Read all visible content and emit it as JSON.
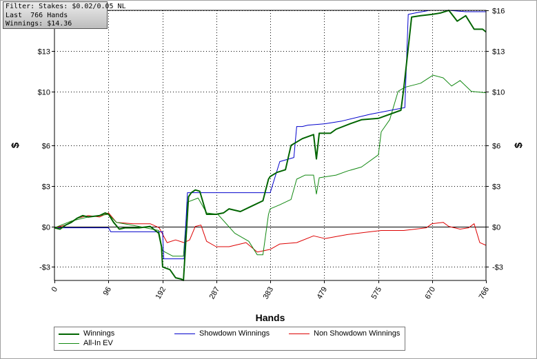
{
  "info_box": {
    "line1": "Filter: Stakes: $0.02/0.05 NL",
    "line2": "Last  766 Hands",
    "line3": "Winnings: $14.36"
  },
  "colors": {
    "winnings": "#006400",
    "showdown": "#0000cc",
    "non_showdown": "#dd0000",
    "all_in_ev": "#118811",
    "zero_line": "#000000",
    "grid": "#000000"
  },
  "chart_data": {
    "type": "line",
    "title": "",
    "xlabel": "Hands",
    "ylabel_left": "$",
    "ylabel_right": "$",
    "xlim": [
      0,
      766
    ],
    "ylim": [
      -4,
      16
    ],
    "x_ticks": [
      0,
      96,
      192,
      287,
      383,
      479,
      575,
      670,
      766
    ],
    "x_tick_labels": [
      "0",
      "96",
      "192",
      "287",
      "383",
      "479",
      "575",
      "670",
      "766"
    ],
    "y_ticks": [
      -3,
      0,
      3,
      6,
      10,
      13,
      16
    ],
    "y_tick_labels": [
      "-$3",
      "$0",
      "$3",
      "$6",
      "$10",
      "$13",
      "$16"
    ],
    "grid": true,
    "legend_position": "bottom",
    "series": [
      {
        "name": "Winnings",
        "key": "winnings",
        "width": 2,
        "points": [
          [
            0,
            -0.1
          ],
          [
            10,
            -0.2
          ],
          [
            20,
            0.1
          ],
          [
            30,
            0.3
          ],
          [
            40,
            0.6
          ],
          [
            50,
            0.8
          ],
          [
            60,
            0.7
          ],
          [
            80,
            0.8
          ],
          [
            90,
            1.0
          ],
          [
            96,
            0.9
          ],
          [
            105,
            0.3
          ],
          [
            115,
            -0.2
          ],
          [
            125,
            -0.1
          ],
          [
            150,
            -0.1
          ],
          [
            170,
            0
          ],
          [
            185,
            -0.5
          ],
          [
            190,
            -1.5
          ],
          [
            192,
            -3
          ],
          [
            205,
            -3.2
          ],
          [
            215,
            -3.8
          ],
          [
            225,
            -3.9
          ],
          [
            229,
            -4.0
          ],
          [
            238,
            2.2
          ],
          [
            243,
            2.5
          ],
          [
            250,
            2.7
          ],
          [
            258,
            2.6
          ],
          [
            270,
            0.9
          ],
          [
            287,
            0.9
          ],
          [
            300,
            1.0
          ],
          [
            310,
            1.3
          ],
          [
            330,
            1.1
          ],
          [
            350,
            1.5
          ],
          [
            370,
            1.9
          ],
          [
            380,
            3.5
          ],
          [
            383,
            3.7
          ],
          [
            395,
            4.0
          ],
          [
            410,
            4.2
          ],
          [
            420,
            6.0
          ],
          [
            440,
            6.5
          ],
          [
            460,
            6.8
          ],
          [
            465,
            5.0
          ],
          [
            470,
            6.9
          ],
          [
            490,
            6.9
          ],
          [
            500,
            7.2
          ],
          [
            525,
            7.6
          ],
          [
            545,
            7.9
          ],
          [
            575,
            8.0
          ],
          [
            615,
            8.6
          ],
          [
            620,
            10.2
          ],
          [
            630,
            14.0
          ],
          [
            634,
            15.5
          ],
          [
            650,
            15.6
          ],
          [
            670,
            15.7
          ],
          [
            685,
            15.8
          ],
          [
            700,
            16.0
          ],
          [
            715,
            15.2
          ],
          [
            730,
            15.6
          ],
          [
            745,
            14.6
          ],
          [
            760,
            14.6
          ],
          [
            766,
            14.4
          ]
        ]
      },
      {
        "name": "Showdown Winnings",
        "key": "showdown",
        "width": 1,
        "points": [
          [
            0,
            -0.1
          ],
          [
            80,
            -0.1
          ],
          [
            96,
            -0.1
          ],
          [
            100,
            -0.4
          ],
          [
            192,
            -0.4
          ],
          [
            194,
            -2.4
          ],
          [
            230,
            -2.4
          ],
          [
            236,
            2.5
          ],
          [
            383,
            2.5
          ],
          [
            400,
            4.8
          ],
          [
            425,
            5.1
          ],
          [
            430,
            7.4
          ],
          [
            440,
            7.4
          ],
          [
            450,
            7.5
          ],
          [
            480,
            7.6
          ],
          [
            510,
            7.8
          ],
          [
            560,
            8.3
          ],
          [
            622,
            8.8
          ],
          [
            628,
            15.7
          ],
          [
            640,
            15.8
          ],
          [
            666,
            16.0
          ],
          [
            700,
            16.0
          ],
          [
            730,
            15.9
          ],
          [
            766,
            15.9
          ]
        ]
      },
      {
        "name": "Non Showdown Winnings",
        "key": "non_showdown",
        "width": 1,
        "points": [
          [
            0,
            -0.1
          ],
          [
            20,
            0.1
          ],
          [
            40,
            0.6
          ],
          [
            60,
            0.8
          ],
          [
            80,
            0.7
          ],
          [
            90,
            0.9
          ],
          [
            96,
            1.0
          ],
          [
            110,
            0.3
          ],
          [
            140,
            0.2
          ],
          [
            170,
            0.2
          ],
          [
            186,
            -0.1
          ],
          [
            200,
            -1.2
          ],
          [
            215,
            -1.0
          ],
          [
            230,
            -1.2
          ],
          [
            240,
            -1.0
          ],
          [
            250,
            0
          ],
          [
            260,
            0.1
          ],
          [
            270,
            -1.1
          ],
          [
            287,
            -1.5
          ],
          [
            310,
            -1.5
          ],
          [
            340,
            -1.2
          ],
          [
            360,
            -1.9
          ],
          [
            383,
            -1.7
          ],
          [
            400,
            -1.3
          ],
          [
            430,
            -1.2
          ],
          [
            460,
            -0.7
          ],
          [
            480,
            -0.9
          ],
          [
            520,
            -0.6
          ],
          [
            560,
            -0.4
          ],
          [
            580,
            -0.3
          ],
          [
            620,
            -0.3
          ],
          [
            660,
            -0.1
          ],
          [
            670,
            0.2
          ],
          [
            690,
            0.3
          ],
          [
            700,
            0
          ],
          [
            720,
            -0.2
          ],
          [
            735,
            -0.1
          ],
          [
            745,
            0.2
          ],
          [
            755,
            -1.2
          ],
          [
            766,
            -1.4
          ]
        ]
      },
      {
        "name": "All-In EV",
        "key": "all_in_ev",
        "width": 1,
        "points": [
          [
            0,
            -0.1
          ],
          [
            30,
            0.4
          ],
          [
            60,
            0.7
          ],
          [
            96,
            0.9
          ],
          [
            110,
            0.3
          ],
          [
            150,
            0
          ],
          [
            185,
            -0.3
          ],
          [
            192,
            -1.8
          ],
          [
            210,
            -2.2
          ],
          [
            229,
            -2.2
          ],
          [
            236,
            1.8
          ],
          [
            255,
            2.1
          ],
          [
            270,
            1.0
          ],
          [
            290,
            0.9
          ],
          [
            320,
            -0.5
          ],
          [
            345,
            -1.1
          ],
          [
            360,
            -2.1
          ],
          [
            370,
            -2.1
          ],
          [
            380,
            0.9
          ],
          [
            383,
            1.3
          ],
          [
            400,
            1.6
          ],
          [
            420,
            2.0
          ],
          [
            430,
            3.5
          ],
          [
            445,
            3.8
          ],
          [
            460,
            3.8
          ],
          [
            465,
            2.4
          ],
          [
            470,
            3.6
          ],
          [
            500,
            3.8
          ],
          [
            520,
            4.1
          ],
          [
            545,
            4.4
          ],
          [
            575,
            5.3
          ],
          [
            580,
            7.0
          ],
          [
            595,
            7.9
          ],
          [
            610,
            10.0
          ],
          [
            622,
            10.3
          ],
          [
            650,
            10.6
          ],
          [
            672,
            11.2
          ],
          [
            690,
            11.0
          ],
          [
            705,
            10.4
          ],
          [
            720,
            10.8
          ],
          [
            740,
            10.0
          ],
          [
            766,
            9.9
          ]
        ]
      }
    ]
  }
}
